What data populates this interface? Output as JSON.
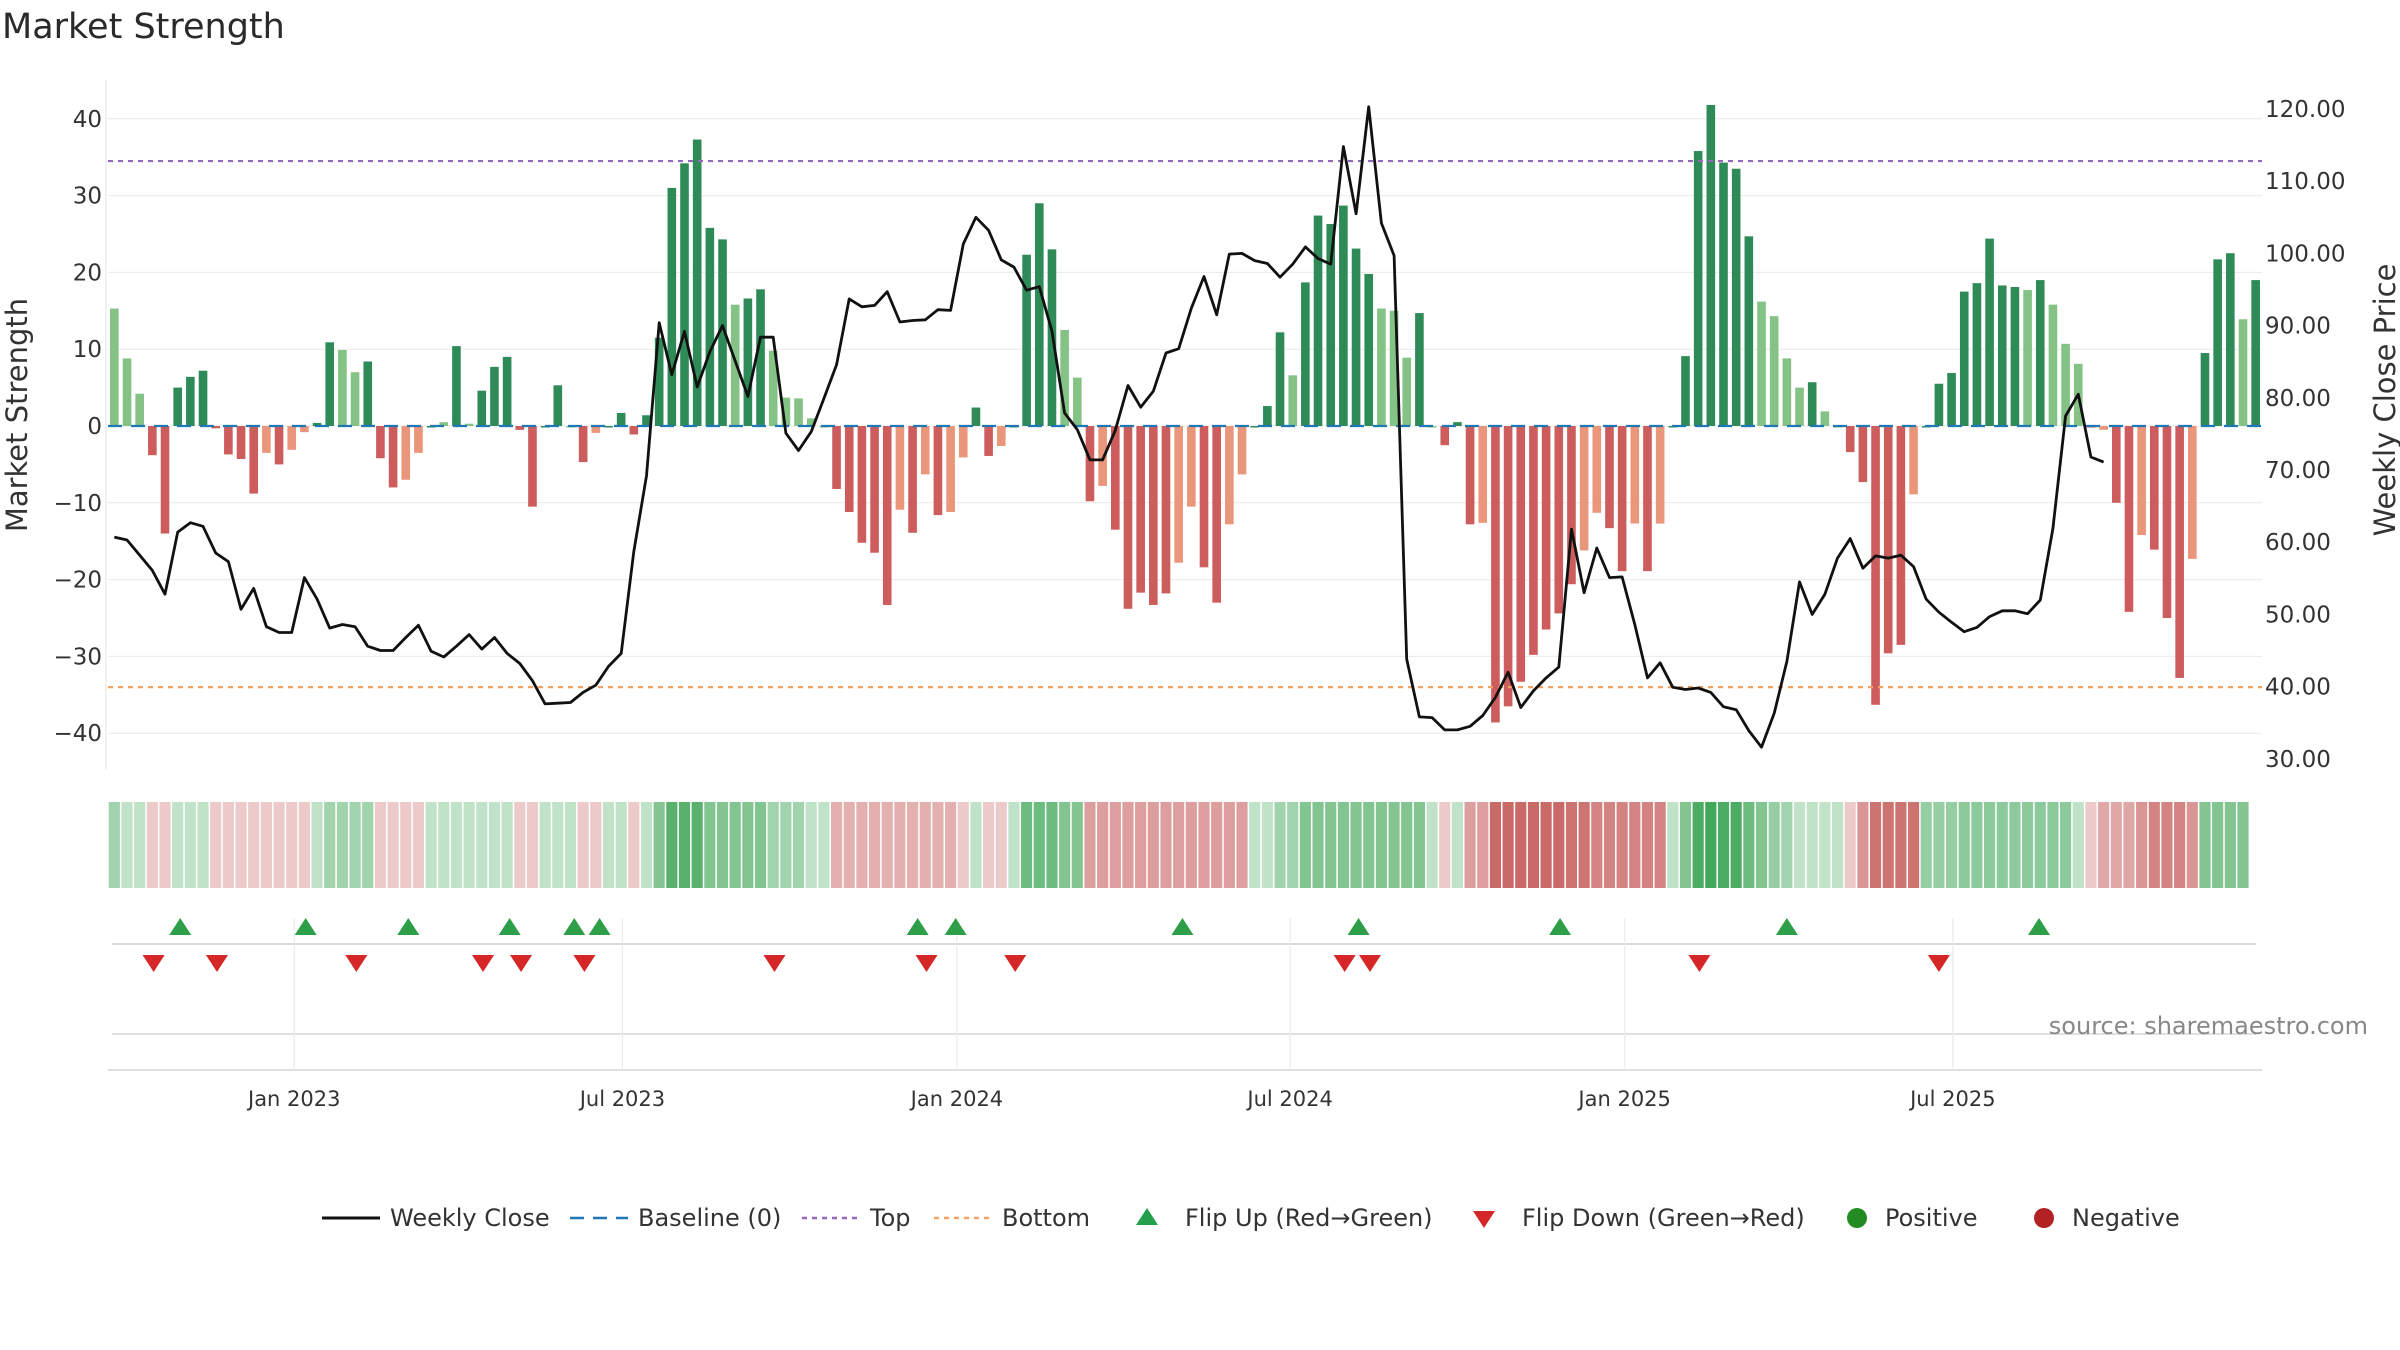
{
  "chart_data": {
    "type": "bar",
    "title": "Market Strength",
    "source": "source: sharemaestro.com",
    "ylabel_left": "Market Strength",
    "ylabel_right": "Weekly Close Price",
    "y_left_range": [
      -45,
      45
    ],
    "y_left_ticks": [
      "40",
      "30",
      "20",
      "10",
      "0",
      "−10",
      "−20",
      "−30",
      "−40"
    ],
    "y_left_tick_values": [
      40,
      30,
      20,
      10,
      0,
      -10,
      -20,
      -30,
      -40
    ],
    "y_right_range": [
      28,
      124
    ],
    "y_right_ticks": [
      "120.00",
      "110.00",
      "100.00",
      "90.00",
      "80.00",
      "70.00",
      "60.00",
      "50.00",
      "40.00",
      "30.00"
    ],
    "y_right_tick_values": [
      120,
      110,
      100,
      90,
      80,
      70,
      60,
      50,
      40,
      30
    ],
    "x_ticks": [
      "Jan 2023",
      "Jul 2023",
      "Jan 2024",
      "Jul 2024",
      "Jan 2025",
      "Jul 2025"
    ],
    "x_tick_week_index": [
      14.2,
      40.1,
      66.5,
      92.8,
      119.2,
      145.1
    ],
    "top_line": 34.5,
    "bottom_line": -34,
    "strength": [
      15.3,
      8.8,
      4.2,
      -3.8,
      -14,
      5,
      6.4,
      7.2,
      -0.3,
      -3.7,
      -4.3,
      -8.8,
      -3.5,
      -5,
      -3.1,
      -0.8,
      0.4,
      10.9,
      9.9,
      7,
      8.4,
      -4.2,
      -8,
      -7,
      -3.5,
      0,
      0.5,
      10.4,
      0.3,
      4.6,
      7.7,
      9,
      -0.5,
      -10.5,
      0,
      5.3,
      0,
      -4.7,
      -0.9,
      0,
      1.7,
      -1.1,
      1.4,
      11.5,
      31,
      34.2,
      37.3,
      25.8,
      24.3,
      15.8,
      16.6,
      17.8,
      9.8,
      3.7,
      3.6,
      1,
      0,
      -8.2,
      -11.2,
      -15.2,
      -16.5,
      -23.3,
      -10.9,
      -13.9,
      -6.3,
      -11.6,
      -11.2,
      -4.1,
      2.4,
      -3.9,
      -2.6,
      0,
      22.3,
      29,
      23,
      12.5,
      6.3,
      -9.8,
      -7.8,
      -13.5,
      -23.8,
      -21.7,
      -23.3,
      -21.8,
      -17.8,
      -10.5,
      -18.4,
      -23,
      -12.8,
      -6.3,
      0,
      2.6,
      12.2,
      6.6,
      18.7,
      27.4,
      26.3,
      28.7,
      23.1,
      19.8,
      15.3,
      15,
      8.9,
      14.7,
      0,
      -2.5,
      0.5,
      -12.8,
      -12.6,
      -38.6,
      -36.5,
      -33.3,
      -29.8,
      -26.5,
      -24.4,
      -20.6,
      -16.2,
      -11.3,
      -13.3,
      -18.9,
      -12.7,
      -18.9,
      -12.7,
      0,
      9.1,
      35.8,
      41.8,
      34.3,
      33.5,
      24.7,
      16.2,
      14.3,
      8.8,
      5,
      5.7,
      1.9,
      0,
      -3.4,
      -7.3,
      -36.3,
      -29.6,
      -28.5,
      -8.9,
      0,
      5.5,
      6.9,
      17.5,
      18.6,
      24.4,
      18.3,
      18.1,
      17.7,
      19,
      15.8,
      10.7,
      8.1,
      -0.2,
      -0.5,
      -10,
      -24.2,
      -14.2,
      -16.1,
      -25,
      -32.8,
      -17.3,
      9.5,
      21.7,
      22.5,
      13.9,
      19
    ],
    "close": [
      60.7,
      60.3,
      58.2,
      56.1,
      52.8,
      61.4,
      62.7,
      62.2,
      58.5,
      57.3,
      50.7,
      53.6,
      48.3,
      47.5,
      47.5,
      55.1,
      52.1,
      48.1,
      48.6,
      48.3,
      45.6,
      45,
      45,
      46.8,
      48.5,
      44.9,
      44.1,
      45.6,
      47.2,
      45.2,
      46.8,
      44.6,
      43.2,
      40.8,
      37.6,
      37.7,
      37.8,
      39.2,
      40.2,
      42.8,
      44.6,
      58.7,
      69.2,
      90.4,
      83.2,
      89.2,
      81.5,
      86.4,
      90,
      85.1,
      80.2,
      88.4,
      88.4,
      75.1,
      72.7,
      75.3,
      79.9,
      84.6,
      93.7,
      92.6,
      92.8,
      94.7,
      90.5,
      90.7,
      90.8,
      92.2,
      92.1,
      101.3,
      105,
      103.2,
      99.1,
      98.1,
      94.9,
      95.4,
      89.2,
      77.9,
      75.6,
      71.4,
      71.4,
      75.5,
      81.7,
      78.7,
      80.9,
      86.2,
      86.8,
      92.4,
      96.8,
      91.5,
      99.9,
      100,
      99,
      98.6,
      96.7,
      98.5,
      100.9,
      99.3,
      98.5,
      114.8,
      105.5,
      120.3,
      104.2,
      99.7,
      43.8,
      35.8,
      35.7,
      34,
      34,
      34.5,
      36,
      38.5,
      42,
      37.1,
      39.4,
      41.2,
      42.7,
      61.8,
      53,
      59.2,
      55.1,
      55.2,
      48.6,
      41.2,
      43.3,
      39.9,
      39.6,
      39.8,
      39.2,
      37.2,
      36.8,
      33.9,
      31.6,
      36.3,
      43.5,
      54.5,
      50,
      52.8,
      57.8,
      60.5,
      56.4,
      58.1,
      57.8,
      58.2,
      56.6,
      52.1,
      50.3,
      48.9,
      47.6,
      48.2,
      49.7,
      50.5,
      50.5,
      50.1,
      52,
      61.9,
      77.5,
      80.5,
      71.8,
      71.1
    ],
    "panel_intensity": [
      0.45,
      0.3,
      0.3,
      0.3,
      0.3,
      0.3,
      0.3,
      0.3,
      0.3,
      0.3,
      0.3,
      0.3,
      0.3,
      0.3,
      0.3,
      0.3,
      0.3,
      0.45,
      0.45,
      0.45,
      0.45,
      0.3,
      0.3,
      0.3,
      0.3,
      0.3,
      0.3,
      0.3,
      0.3,
      0.3,
      0.3,
      0.3,
      0.3,
      0.3,
      0.3,
      0.3,
      0.3,
      0.3,
      0.3,
      0.3,
      0.3,
      0.3,
      0.3,
      0.6,
      0.8,
      0.8,
      0.8,
      0.6,
      0.6,
      0.6,
      0.6,
      0.6,
      0.45,
      0.45,
      0.45,
      0.3,
      0.3,
      0.45,
      0.45,
      0.45,
      0.45,
      0.45,
      0.45,
      0.45,
      0.45,
      0.45,
      0.45,
      0.3,
      0.3,
      0.3,
      0.3,
      0.3,
      0.7,
      0.7,
      0.7,
      0.6,
      0.6,
      0.55,
      0.55,
      0.55,
      0.55,
      0.55,
      0.55,
      0.55,
      0.55,
      0.55,
      0.55,
      0.55,
      0.55,
      0.55,
      0.3,
      0.3,
      0.45,
      0.45,
      0.6,
      0.6,
      0.6,
      0.6,
      0.6,
      0.6,
      0.6,
      0.6,
      0.6,
      0.6,
      0.3,
      0.3,
      0.3,
      0.55,
      0.55,
      0.85,
      0.85,
      0.85,
      0.85,
      0.85,
      0.85,
      0.8,
      0.8,
      0.7,
      0.7,
      0.7,
      0.7,
      0.7,
      0.7,
      0.3,
      0.6,
      0.85,
      0.9,
      0.85,
      0.85,
      0.7,
      0.6,
      0.5,
      0.45,
      0.3,
      0.3,
      0.3,
      0.3,
      0.3,
      0.6,
      0.8,
      0.8,
      0.8,
      0.8,
      0.5,
      0.5,
      0.5,
      0.55,
      0.55,
      0.55,
      0.55,
      0.55,
      0.55,
      0.55,
      0.55,
      0.55,
      0.3,
      0.3,
      0.5,
      0.5,
      0.5,
      0.6,
      0.7,
      0.7,
      0.7,
      0.6,
      0.6,
      0.6,
      0.6,
      0.6
    ],
    "flip_up_weeks": [
      5.2,
      15.1,
      23.2,
      31.2,
      36.3,
      38.3,
      63.4,
      66.4,
      84.3,
      98.2,
      114.1,
      132.0,
      151.9
    ],
    "flip_down_weeks": [
      3.1,
      8.1,
      19.1,
      29.1,
      32.1,
      37.1,
      52.1,
      64.1,
      71.1,
      97.1,
      99.1,
      125.1,
      144.0
    ],
    "legend": [
      {
        "label": "Weekly Close",
        "symbol": "solid-line",
        "color": "#111111"
      },
      {
        "label": "Baseline (0)",
        "symbol": "dashed-line",
        "color": "#1f77b4"
      },
      {
        "label": "Top",
        "symbol": "dotted-line",
        "color": "#9467bd"
      },
      {
        "label": "Bottom",
        "symbol": "dotted-line",
        "color": "#f4a261"
      },
      {
        "label": "Flip Up (Red→Green)",
        "symbol": "triangle-up",
        "color": "#22a04b"
      },
      {
        "label": "Flip Down (Green→Red)",
        "symbol": "triangle-down",
        "color": "#d62728"
      },
      {
        "label": "Positive",
        "symbol": "dot",
        "color": "#228b22"
      },
      {
        "label": "Negative",
        "symbol": "dot",
        "color": "#b22222"
      }
    ],
    "colors": {
      "pos_strong": "#2e8b57",
      "pos_weak": "#85c285",
      "neg_strong": "#cd5c5c",
      "neg_weak": "#e9967a",
      "panel_green": "#2e9e48",
      "panel_red": "#c0504d",
      "close_line": "#111111",
      "baseline": "#1f77b4",
      "top": "#9467bd",
      "bottom": "#f4a261"
    }
  }
}
